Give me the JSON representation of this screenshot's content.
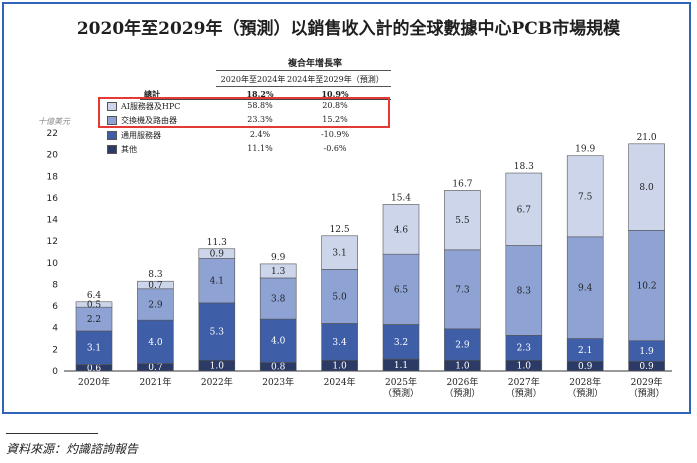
{
  "chart_data": {
    "type": "stacked-bar",
    "title": "2020年至2029年（預測）以銷售收入計的全球數據中心PCB市場規模",
    "unit": "十億美元",
    "ylim": [
      0,
      22
    ],
    "yticks": [
      0,
      2,
      4,
      6,
      8,
      10,
      12,
      14,
      16,
      18,
      20,
      22
    ],
    "categories": [
      "2020年",
      "2021年",
      "2022年",
      "2023年",
      "2024年",
      "2025年\n（預測）",
      "2026年\n（預測）",
      "2027年\n（預測）",
      "2028年\n（預測）",
      "2029年\n（預測）"
    ],
    "series": [
      {
        "name": "其他",
        "color": "#2b3b66",
        "label_color": "#ffffff",
        "values": [
          0.6,
          0.7,
          1.0,
          0.8,
          1.0,
          1.1,
          1.0,
          1.0,
          0.9,
          0.9
        ]
      },
      {
        "name": "通用服務器",
        "color": "#3e5ea8",
        "label_color": "#ffffff",
        "values": [
          3.1,
          4.0,
          5.3,
          4.0,
          3.4,
          3.2,
          2.9,
          2.3,
          2.1,
          1.9
        ]
      },
      {
        "name": "交換機及路由器",
        "color": "#8ea3d4",
        "label_color": "#1f1f1f",
        "values": [
          2.2,
          2.9,
          4.1,
          3.8,
          5.0,
          6.5,
          7.3,
          8.3,
          9.4,
          10.2
        ]
      },
      {
        "name": "AI服務器及HPC",
        "color": "#ccd5ea",
        "label_color": "#1f1f1f",
        "values": [
          0.5,
          0.7,
          0.9,
          1.3,
          3.1,
          4.6,
          5.5,
          6.7,
          7.5,
          8.0
        ]
      }
    ],
    "totals": [
      6.4,
      8.3,
      11.3,
      9.9,
      12.5,
      15.4,
      16.7,
      18.3,
      19.9,
      21.0
    ],
    "cagr_table": {
      "header": "複合年增長率",
      "col1": "2020年至2024年",
      "col2": "2024年至2029年（預測）",
      "total_label": "總計",
      "total": [
        "18.2%",
        "10.9%"
      ],
      "rows": [
        {
          "name": "AI服務器及HPC",
          "color": "#ccd5ea",
          "v1": "58.8%",
          "v2": "20.8%"
        },
        {
          "name": "交換機及路由器",
          "color": "#8ea3d4",
          "v1": "23.3%",
          "v2": "15.2%"
        },
        {
          "name": "通用服務器",
          "color": "#3e5ea8",
          "v1": "2.4%",
          "v2": "-10.9%"
        },
        {
          "name": "其他",
          "color": "#2b3b66",
          "v1": "11.1%",
          "v2": "-0.6%"
        }
      ]
    },
    "source": "資料來源：灼識諮詢報告"
  }
}
